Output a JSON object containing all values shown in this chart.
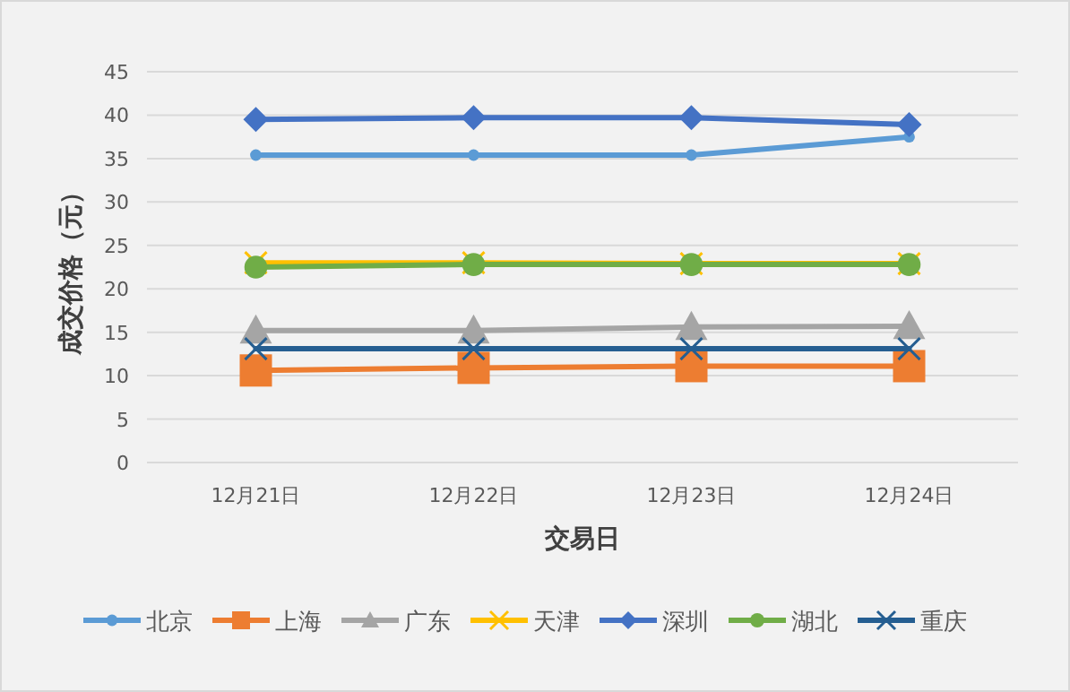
{
  "chart_data": {
    "type": "line",
    "xlabel": "交易日",
    "ylabel": "成交价格（元）",
    "categories": [
      "12月21日",
      "12月22日",
      "12月23日",
      "12月24日"
    ],
    "ylim": [
      0,
      45
    ],
    "yticks": [
      0,
      5,
      10,
      15,
      20,
      25,
      30,
      35,
      40,
      45
    ],
    "grid": "y",
    "legend": "bottom",
    "line_style": "solid",
    "series": [
      {
        "name": "北京",
        "color": "#5b9bd5",
        "marker": "circle",
        "values": [
          35.4,
          35.4,
          35.4,
          37.5
        ]
      },
      {
        "name": "上海",
        "color": "#ed7d31",
        "marker": "square",
        "values": [
          10.6,
          10.9,
          11.1,
          11.1
        ]
      },
      {
        "name": "广东",
        "color": "#a5a5a5",
        "marker": "triangle",
        "values": [
          15.2,
          15.2,
          15.6,
          15.7
        ]
      },
      {
        "name": "天津",
        "color": "#ffc000",
        "marker": "cross",
        "values": [
          23.0,
          23.0,
          22.9,
          22.9
        ]
      },
      {
        "name": "深圳",
        "color": "#4472c4",
        "marker": "diamond",
        "values": [
          39.5,
          39.7,
          39.7,
          38.9
        ]
      },
      {
        "name": "湖北",
        "color": "#70ad47",
        "marker": "circle",
        "values": [
          22.5,
          22.8,
          22.8,
          22.8
        ]
      },
      {
        "name": "重庆",
        "color": "#255e91",
        "marker": "cross",
        "values": [
          13.1,
          13.1,
          13.1,
          13.1
        ]
      }
    ]
  }
}
